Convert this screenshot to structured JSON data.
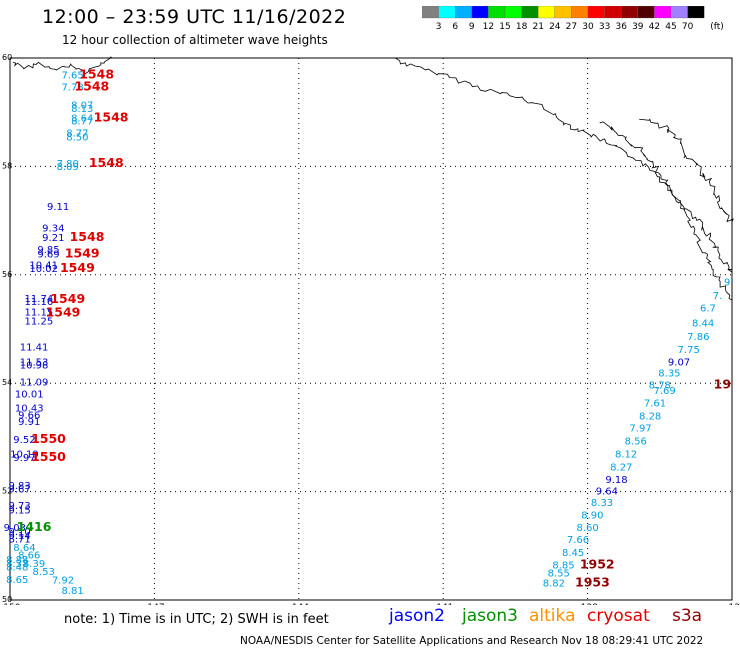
{
  "header": {
    "title": "12:00 – 23:59 UTC 11/16/2022",
    "subtitle": "12 hour collection of altimeter wave heights"
  },
  "colorbar": {
    "colors": [
      "#808080",
      "#00ffff",
      "#00b0ff",
      "#0000ff",
      "#00e000",
      "#00ff00",
      "#009000",
      "#ffff00",
      "#ffc000",
      "#ff8000",
      "#ff0000",
      "#d00000",
      "#900000",
      "#500000",
      "#ff00ff",
      "#a080ff",
      "#000000"
    ],
    "labels": [
      "3",
      "6",
      "9",
      "12",
      "15",
      "18",
      "21",
      "24",
      "27",
      "30",
      "33",
      "36",
      "39",
      "42",
      "45",
      "70"
    ],
    "unit": "(ft)"
  },
  "axes": {
    "lat_labels": [
      "60",
      "58",
      "56",
      "54",
      "52",
      "50"
    ],
    "lon_labels": [
      "-150",
      "-147",
      "-144",
      "-141",
      "-138",
      "-13"
    ]
  },
  "wave_labels": [
    {
      "text": "7.65",
      "lon": -148.7,
      "lat": 59.62,
      "color": "#00a0e0"
    },
    {
      "text": "7.78",
      "lon": -148.7,
      "lat": 59.4,
      "color": "#00a0e0"
    },
    {
      "text": "8.07",
      "lon": -148.5,
      "lat": 59.07,
      "color": "#00a0e0"
    },
    {
      "text": "8.13",
      "lon": -148.5,
      "lat": 59.0,
      "color": "#00a0e0"
    },
    {
      "text": "8.64",
      "lon": -148.5,
      "lat": 58.83,
      "color": "#00a0e0"
    },
    {
      "text": "8.77",
      "lon": -148.5,
      "lat": 58.77,
      "color": "#00a0e0"
    },
    {
      "text": "8.77",
      "lon": -148.6,
      "lat": 58.55,
      "color": "#00a0e0"
    },
    {
      "text": "8.50",
      "lon": -148.6,
      "lat": 58.48,
      "color": "#00a0e0"
    },
    {
      "text": "7.80",
      "lon": -148.8,
      "lat": 57.99,
      "color": "#00a0e0"
    },
    {
      "text": "8.09",
      "lon": -148.8,
      "lat": 57.93,
      "color": "#00a0e0"
    },
    {
      "text": "9.11",
      "lon": -149.0,
      "lat": 57.2,
      "color": "#0000d0"
    },
    {
      "text": "9.34",
      "lon": -149.1,
      "lat": 56.8,
      "color": "#0000d0"
    },
    {
      "text": "9.21",
      "lon": -149.1,
      "lat": 56.62,
      "color": "#0000d0"
    },
    {
      "text": "9.85",
      "lon": -149.2,
      "lat": 56.4,
      "color": "#0000d0"
    },
    {
      "text": "9.69",
      "lon": -149.2,
      "lat": 56.32,
      "color": "#0000d0"
    },
    {
      "text": "10.41",
      "lon": -149.3,
      "lat": 56.12,
      "color": "#0000d0"
    },
    {
      "text": "10.02",
      "lon": -149.3,
      "lat": 56.05,
      "color": "#0000d0"
    },
    {
      "text": "11.74",
      "lon": -149.4,
      "lat": 55.5,
      "color": "#0000d0"
    },
    {
      "text": "11.16",
      "lon": -149.4,
      "lat": 55.44,
      "color": "#0000d0"
    },
    {
      "text": "11.15",
      "lon": -149.4,
      "lat": 55.25,
      "color": "#0000d0"
    },
    {
      "text": "11.25",
      "lon": -149.4,
      "lat": 55.08,
      "color": "#0000d0"
    },
    {
      "text": "11.41",
      "lon": -149.5,
      "lat": 54.6,
      "color": "#0000d0"
    },
    {
      "text": "11.53",
      "lon": -149.5,
      "lat": 54.33,
      "color": "#0000d0"
    },
    {
      "text": "10.98",
      "lon": -149.5,
      "lat": 54.27,
      "color": "#0000d0"
    },
    {
      "text": "11.09",
      "lon": -149.5,
      "lat": 53.96,
      "color": "#0000d0"
    },
    {
      "text": "10.01",
      "lon": -149.6,
      "lat": 53.74,
      "color": "#0000d0"
    },
    {
      "text": "10.43",
      "lon": -149.6,
      "lat": 53.48,
      "color": "#0000d0"
    },
    {
      "text": "9.66",
      "lon": -149.6,
      "lat": 53.35,
      "color": "#0000d0"
    },
    {
      "text": "9.91",
      "lon": -149.6,
      "lat": 53.23,
      "color": "#0000d0"
    },
    {
      "text": "9.52",
      "lon": -149.7,
      "lat": 52.9,
      "color": "#0000d0"
    },
    {
      "text": "10.19",
      "lon": -149.7,
      "lat": 52.63,
      "color": "#0000d0"
    },
    {
      "text": "9.97",
      "lon": -149.7,
      "lat": 52.56,
      "color": "#0000d0"
    },
    {
      "text": "9.83",
      "lon": -149.8,
      "lat": 52.05,
      "color": "#0000d0"
    },
    {
      "text": "9.67",
      "lon": -149.8,
      "lat": 51.98,
      "color": "#0000d0"
    },
    {
      "text": "9.73",
      "lon": -149.8,
      "lat": 51.68,
      "color": "#0000d0"
    },
    {
      "text": "9.15",
      "lon": -149.8,
      "lat": 51.6,
      "color": "#0000d0"
    },
    {
      "text": "9.03",
      "lon": -149.9,
      "lat": 51.27,
      "color": "#0000d0"
    },
    {
      "text": "9.10",
      "lon": -149.8,
      "lat": 51.2,
      "color": "#0000d0"
    },
    {
      "text": "9.14",
      "lon": -149.8,
      "lat": 51.13,
      "color": "#0000d0"
    },
    {
      "text": "8.71",
      "lon": -149.8,
      "lat": 51.06,
      "color": "#0000d0"
    },
    {
      "text": "8.64",
      "lon": -149.7,
      "lat": 50.9,
      "color": "#00a0e0"
    },
    {
      "text": "8.66",
      "lon": -149.6,
      "lat": 50.77,
      "color": "#00a0e0"
    },
    {
      "text": "8.88",
      "lon": -149.85,
      "lat": 50.68,
      "color": "#00a0e0"
    },
    {
      "text": "8.37",
      "lon": -149.85,
      "lat": 50.61,
      "color": "#00a0e0"
    },
    {
      "text": "8.39",
      "lon": -149.5,
      "lat": 50.61,
      "color": "#00a0e0"
    },
    {
      "text": "8.48",
      "lon": -149.85,
      "lat": 50.54,
      "color": "#00a0e0"
    },
    {
      "text": "8.53",
      "lon": -149.3,
      "lat": 50.46,
      "color": "#00a0e0"
    },
    {
      "text": "8.65",
      "lon": -149.85,
      "lat": 50.31,
      "color": "#00a0e0"
    },
    {
      "text": "7.92",
      "lon": -148.9,
      "lat": 50.3,
      "color": "#00a0e0"
    },
    {
      "text": "8.81",
      "lon": -148.7,
      "lat": 50.11,
      "color": "#00a0e0"
    },
    {
      "text": "9",
      "lon": -135.1,
      "lat": 55.8,
      "color": "#00a0e0"
    },
    {
      "text": "7.",
      "lon": -135.3,
      "lat": 55.55,
      "color": "#00a0e0"
    },
    {
      "text": "6.7",
      "lon": -135.5,
      "lat": 55.32,
      "color": "#00a0e0"
    },
    {
      "text": "8.44",
      "lon": -135.6,
      "lat": 55.05,
      "color": "#00a0e0"
    },
    {
      "text": "7.86",
      "lon": -135.7,
      "lat": 54.8,
      "color": "#00a0e0"
    },
    {
      "text": "7.75",
      "lon": -135.9,
      "lat": 54.56,
      "color": "#00a0e0"
    },
    {
      "text": "9.07",
      "lon": -136.1,
      "lat": 54.33,
      "color": "#0000d0"
    },
    {
      "text": "8.35",
      "lon": -136.3,
      "lat": 54.12,
      "color": "#00a0e0"
    },
    {
      "text": "8.78",
      "lon": -136.5,
      "lat": 53.9,
      "color": "#00a0e0"
    },
    {
      "text": "7.69",
      "lon": -136.4,
      "lat": 53.8,
      "color": "#00a0e0"
    },
    {
      "text": "7.61",
      "lon": -136.6,
      "lat": 53.57,
      "color": "#00a0e0"
    },
    {
      "text": "8.28",
      "lon": -136.7,
      "lat": 53.33,
      "color": "#00a0e0"
    },
    {
      "text": "7.97",
      "lon": -136.9,
      "lat": 53.11,
      "color": "#00a0e0"
    },
    {
      "text": "8.56",
      "lon": -137.0,
      "lat": 52.87,
      "color": "#00a0e0"
    },
    {
      "text": "8.12",
      "lon": -137.2,
      "lat": 52.63,
      "color": "#00a0e0"
    },
    {
      "text": "8.27",
      "lon": -137.3,
      "lat": 52.39,
      "color": "#00a0e0"
    },
    {
      "text": "9.18",
      "lon": -137.4,
      "lat": 52.16,
      "color": "#0000d0"
    },
    {
      "text": "9.64",
      "lon": -137.6,
      "lat": 51.95,
      "color": "#0000d0"
    },
    {
      "text": "8.33",
      "lon": -137.7,
      "lat": 51.73,
      "color": "#00a0e0"
    },
    {
      "text": "8.90",
      "lon": -137.9,
      "lat": 51.5,
      "color": "#00a0e0"
    },
    {
      "text": "8.60",
      "lon": -138.0,
      "lat": 51.27,
      "color": "#00a0e0"
    },
    {
      "text": "7.66",
      "lon": -138.2,
      "lat": 51.05,
      "color": "#00a0e0"
    },
    {
      "text": "8.45",
      "lon": -138.3,
      "lat": 50.81,
      "color": "#00a0e0"
    },
    {
      "text": "8.85",
      "lon": -138.5,
      "lat": 50.58,
      "color": "#00a0e0"
    },
    {
      "text": "8.55",
      "lon": -138.6,
      "lat": 50.43,
      "color": "#00a0e0"
    },
    {
      "text": "8.82",
      "lon": -138.7,
      "lat": 50.25,
      "color": "#00a0e0"
    }
  ],
  "time_labels": [
    {
      "text": "1548",
      "lon": -148.2,
      "lat": 59.62,
      "color": "#e00000"
    },
    {
      "text": "1548",
      "lon": -148.3,
      "lat": 59.4,
      "color": "#e00000"
    },
    {
      "text": "1548",
      "lon": -147.9,
      "lat": 58.83,
      "color": "#e00000"
    },
    {
      "text": "1548",
      "lon": -148.0,
      "lat": 57.99,
      "color": "#e00000"
    },
    {
      "text": "1548",
      "lon": -148.4,
      "lat": 56.62,
      "color": "#e00000"
    },
    {
      "text": "1549",
      "lon": -148.5,
      "lat": 56.32,
      "color": "#e00000"
    },
    {
      "text": "1549",
      "lon": -148.6,
      "lat": 56.05,
      "color": "#e00000"
    },
    {
      "text": "1549",
      "lon": -148.8,
      "lat": 55.48,
      "color": "#e00000"
    },
    {
      "text": "1549",
      "lon": -148.9,
      "lat": 55.23,
      "color": "#e00000"
    },
    {
      "text": "1550",
      "lon": -149.2,
      "lat": 52.9,
      "color": "#e00000"
    },
    {
      "text": "1550",
      "lon": -149.2,
      "lat": 52.56,
      "color": "#e00000"
    },
    {
      "text": "1416",
      "lon": -149.5,
      "lat": 51.27,
      "color": "#009000"
    },
    {
      "text": "1952",
      "lon": -137.8,
      "lat": 50.58,
      "color": "#900000"
    },
    {
      "text": "1953",
      "lon": -137.9,
      "lat": 50.25,
      "color": "#900000"
    },
    {
      "text": "19",
      "lon": -135.2,
      "lat": 53.9,
      "color": "#900000"
    }
  ],
  "footer": {
    "note": "note:  1) Time is in UTC;  2) SWH is in feet",
    "missions": [
      {
        "name": "jason2",
        "color": "#0000ff"
      },
      {
        "name": "jason3",
        "color": "#009000"
      },
      {
        "name": "altika",
        "color": "#ff9000"
      },
      {
        "name": "cryosat",
        "color": "#e00000"
      },
      {
        "name": "s3a",
        "color": "#900000"
      }
    ],
    "credit": "NOAA/NESDIS Center for Satellite Applications and Research    Nov 18 08:29:41 UTC 2022"
  }
}
